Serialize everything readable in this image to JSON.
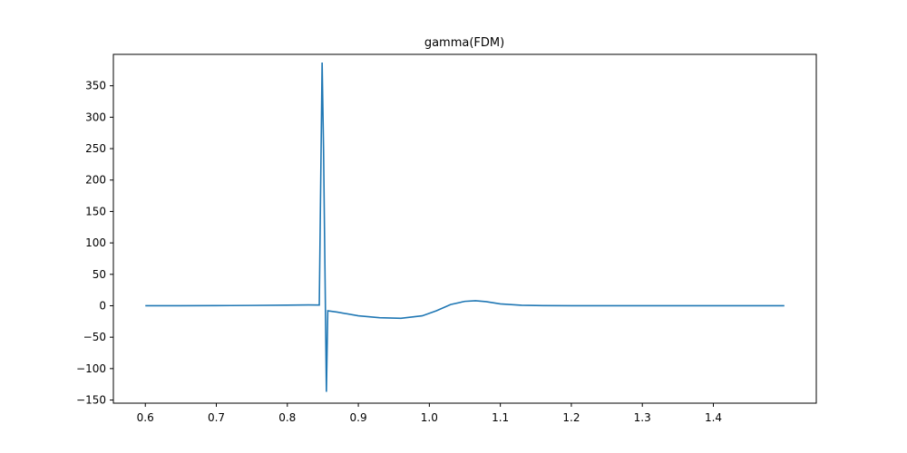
{
  "chart_data": {
    "type": "line",
    "title": "gamma(FDM)",
    "xlabel": "",
    "ylabel": "",
    "xlim": [
      0.555,
      1.545
    ],
    "ylim": [
      -155,
      400
    ],
    "x_ticks": [
      0.6,
      0.7,
      0.8,
      0.9,
      1.0,
      1.1,
      1.2,
      1.3,
      1.4
    ],
    "x_tick_labels": [
      "0.6",
      "0.7",
      "0.8",
      "0.9",
      "1.0",
      "1.1",
      "1.2",
      "1.3",
      "1.4"
    ],
    "y_ticks": [
      -150,
      -100,
      -50,
      0,
      50,
      100,
      150,
      200,
      250,
      300,
      350
    ],
    "y_tick_labels": [
      "−150",
      "−100",
      "−50",
      "0",
      "50",
      "100",
      "150",
      "200",
      "250",
      "300",
      "350"
    ],
    "grid": false,
    "colors": {
      "line": "#1f77b4",
      "axes": "#000000"
    },
    "series": [
      {
        "x": [
          0.6,
          0.65,
          0.7,
          0.75,
          0.8,
          0.83,
          0.845,
          0.849,
          0.851,
          0.855,
          0.857,
          0.87,
          0.9,
          0.93,
          0.96,
          0.99,
          1.01,
          1.03,
          1.05,
          1.065,
          1.08,
          1.1,
          1.13,
          1.16,
          1.2,
          1.3,
          1.4,
          1.5
        ],
        "y": [
          0,
          0,
          0.2,
          0.5,
          1,
          1.3,
          1.2,
          387,
          250,
          -137,
          -8,
          -10,
          -16,
          -19,
          -20,
          -16,
          -8,
          2,
          7,
          8,
          6.5,
          3,
          0.8,
          0.2,
          0,
          0,
          0,
          0
        ]
      }
    ]
  }
}
